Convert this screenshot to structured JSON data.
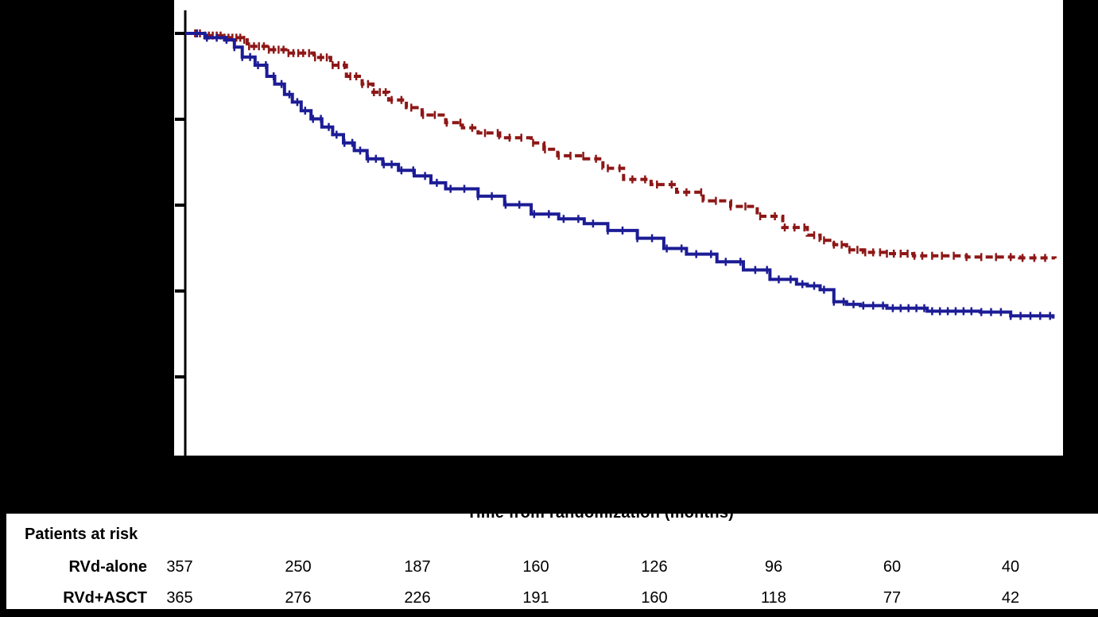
{
  "chart_data": {
    "type": "line",
    "subtype": "kaplan-meier-survival",
    "title": "",
    "xlabel": "Time from randomization (months)",
    "ylabel": "",
    "xlim_months": [
      0,
      89
    ],
    "ylim": [
      0,
      1
    ],
    "grid": false,
    "legend_visible": false,
    "x_axis": {
      "tick_labels_visible": false
    },
    "y_axis": {
      "tick_count": 5,
      "tick_interval": 0.2,
      "tick_labels_visible": false
    },
    "colors": {
      "rvd_alone": "#1c1c96",
      "rvd_asct": "#8e1717",
      "axis": "#000000",
      "background": "#000000",
      "plot_background": "#ffffff"
    },
    "series": [
      {
        "name": "RVd+ASCT",
        "color": "#8e1717",
        "style": "dashed",
        "points": [
          [
            0,
            1.0
          ],
          [
            2,
            0.995
          ],
          [
            4,
            0.99
          ],
          [
            5.8,
            0.985
          ],
          [
            6.3,
            0.97
          ],
          [
            8.5,
            0.962
          ],
          [
            10.4,
            0.954
          ],
          [
            13.1,
            0.944
          ],
          [
            14.8,
            0.926
          ],
          [
            16.4,
            0.9
          ],
          [
            18,
            0.882
          ],
          [
            19.1,
            0.863
          ],
          [
            20.7,
            0.845
          ],
          [
            22.5,
            0.827
          ],
          [
            24.1,
            0.81
          ],
          [
            26.5,
            0.792
          ],
          [
            28.2,
            0.78
          ],
          [
            29.8,
            0.768
          ],
          [
            32,
            0.757
          ],
          [
            35.2,
            0.745
          ],
          [
            36.5,
            0.73
          ],
          [
            37.9,
            0.715
          ],
          [
            40.6,
            0.708
          ],
          [
            42.5,
            0.686
          ],
          [
            44.6,
            0.66
          ],
          [
            47.4,
            0.648
          ],
          [
            50,
            0.63
          ],
          [
            52.7,
            0.61
          ],
          [
            55.5,
            0.597
          ],
          [
            58.2,
            0.574
          ],
          [
            60.8,
            0.548
          ],
          [
            63.3,
            0.53
          ],
          [
            64.6,
            0.518
          ],
          [
            66,
            0.508
          ],
          [
            67.3,
            0.496
          ],
          [
            69,
            0.49
          ],
          [
            71.4,
            0.487
          ],
          [
            74.1,
            0.482
          ],
          [
            79.5,
            0.479
          ],
          [
            84.9,
            0.477
          ],
          [
            88.5,
            0.476
          ]
        ],
        "censor_times": [
          1,
          1.5,
          2,
          2.4,
          2.8,
          3.2,
          3.6,
          4,
          4.4,
          4.8,
          5.2,
          5.6,
          6,
          6.5,
          7,
          7.5,
          8,
          8.5,
          9,
          9.5,
          10,
          10.5,
          11,
          11.5,
          12,
          12.6,
          13.2,
          13.8,
          14.4,
          15,
          15.6,
          16.2,
          16.8,
          17.4,
          18,
          18.6,
          19.2,
          19.8,
          20.4,
          21,
          22,
          23,
          24.2,
          25.4,
          26.6,
          28,
          29.2,
          30.5,
          31.8,
          33,
          34.2,
          35.4,
          36.6,
          38,
          39.2,
          40.5,
          41.8,
          43,
          44.2,
          45.5,
          46.8,
          48,
          49.5,
          51,
          52.5,
          54,
          55.5,
          57,
          58.5,
          60,
          61,
          62,
          63,
          64,
          65,
          66,
          66.8,
          67.6,
          68.4,
          69.2,
          70,
          70.7,
          71.4,
          72.1,
          72.8,
          73.5,
          74.2,
          75,
          76,
          77,
          78.2,
          79.5,
          81,
          82.5,
          84,
          85.2,
          86.4,
          87.5
        ]
      },
      {
        "name": "RVd-alone",
        "color": "#1c1c96",
        "style": "solid",
        "points": [
          [
            0,
            1.0
          ],
          [
            2,
            0.99
          ],
          [
            4,
            0.985
          ],
          [
            5,
            0.968
          ],
          [
            5.8,
            0.945
          ],
          [
            7.1,
            0.926
          ],
          [
            8.3,
            0.9
          ],
          [
            9.1,
            0.882
          ],
          [
            10.1,
            0.858
          ],
          [
            10.9,
            0.84
          ],
          [
            11.8,
            0.82
          ],
          [
            12.8,
            0.801
          ],
          [
            13.9,
            0.782
          ],
          [
            15,
            0.764
          ],
          [
            16.1,
            0.745
          ],
          [
            17.2,
            0.727
          ],
          [
            18.5,
            0.708
          ],
          [
            20.1,
            0.695
          ],
          [
            21.7,
            0.681
          ],
          [
            23.3,
            0.668
          ],
          [
            25,
            0.652
          ],
          [
            26.5,
            0.638
          ],
          [
            29.8,
            0.621
          ],
          [
            32.5,
            0.601
          ],
          [
            35.2,
            0.579
          ],
          [
            38,
            0.568
          ],
          [
            40.6,
            0.557
          ],
          [
            43,
            0.541
          ],
          [
            46,
            0.523
          ],
          [
            48.7,
            0.499
          ],
          [
            51,
            0.486
          ],
          [
            54.1,
            0.468
          ],
          [
            56.8,
            0.449
          ],
          [
            59.5,
            0.427
          ],
          [
            62.2,
            0.416
          ],
          [
            63.3,
            0.412
          ],
          [
            64.6,
            0.403
          ],
          [
            66,
            0.375
          ],
          [
            67.3,
            0.369
          ],
          [
            68.7,
            0.366
          ],
          [
            71.4,
            0.36
          ],
          [
            75.5,
            0.353
          ],
          [
            80.9,
            0.351
          ],
          [
            84,
            0.342
          ],
          [
            88.3,
            0.336
          ]
        ],
        "censor_times": [
          1.2,
          2.2,
          3.2,
          4.2,
          5,
          5.8,
          6.6,
          7.4,
          8.2,
          9,
          9.8,
          10.6,
          11.4,
          12.2,
          13,
          13.8,
          14.6,
          15.4,
          16.2,
          17,
          17.8,
          18.6,
          19.4,
          20.2,
          21,
          22,
          23.2,
          24.4,
          25.6,
          27,
          28.4,
          29.8,
          31.2,
          32.6,
          34,
          35.5,
          37,
          38.5,
          40,
          41.5,
          43,
          44.5,
          46,
          47.5,
          49,
          50.5,
          52,
          53.5,
          55,
          56.5,
          58,
          59.2,
          60.4,
          61.6,
          62.8,
          64,
          65,
          66,
          67,
          68,
          69,
          70,
          71,
          72,
          72.8,
          73.6,
          74.4,
          75.2,
          76,
          76.8,
          77.6,
          78.4,
          79.2,
          80,
          81,
          82,
          83,
          84,
          85,
          86,
          87,
          88
        ]
      }
    ],
    "risk_table": {
      "title": "Patients at risk",
      "time_points_months": [
        0,
        12,
        24,
        36,
        48,
        60,
        72,
        84
      ],
      "rows": [
        {
          "label": "RVd-alone",
          "counts": [
            "357",
            "250",
            "187",
            "160",
            "126",
            "96",
            "60",
            "40"
          ]
        },
        {
          "label": "RVd+ASCT",
          "counts": [
            "365",
            "276",
            "226",
            "191",
            "160",
            "118",
            "77",
            "42"
          ]
        }
      ]
    }
  }
}
